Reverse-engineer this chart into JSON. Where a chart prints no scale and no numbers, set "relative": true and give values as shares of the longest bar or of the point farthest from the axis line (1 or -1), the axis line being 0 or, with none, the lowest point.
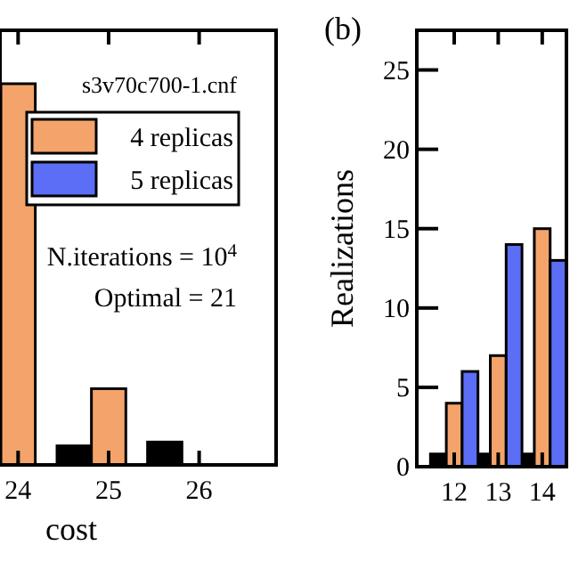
{
  "chart_data": [
    {
      "type": "bar",
      "xlabel": "cost",
      "relative": true,
      "x": [
        24,
        25,
        26
      ],
      "xlim": [
        23.8,
        26.85
      ],
      "xticks": [
        24,
        25,
        26
      ],
      "legend": "top right",
      "series": [
        {
          "color": "#000000",
          "values": [
            null,
            0.05,
            0.06
          ]
        },
        {
          "name": "4 replicas",
          "color": "#f4a46a",
          "values": [
            1,
            0.2,
            0
          ]
        },
        {
          "name": "5 replicas",
          "color": "#5b6ef5",
          "values": [
            0,
            0,
            0
          ]
        }
      ],
      "annotations": [
        "s3v70c700-1.cnf",
        "N.iterations = 10$^{4}$",
        "Optimal = 21"
      ]
    },
    {
      "type": "bar",
      "title": "(b)",
      "ylabel": "Realizations",
      "x": [
        12,
        13,
        14
      ],
      "xlim": [
        11.15,
        14.55
      ],
      "xticks": [
        12,
        13,
        14
      ],
      "ylim": [
        0,
        27.5
      ],
      "yticks": [
        0,
        5,
        10,
        15,
        20,
        25
      ],
      "series": [
        {
          "color": "#000000",
          "values": [
            0.8,
            0.8,
            0.8
          ]
        },
        {
          "color": "#f4a46a",
          "values": [
            4,
            7,
            15
          ]
        },
        {
          "color": "#5b6ef5",
          "values": [
            6,
            14,
            13
          ]
        }
      ]
    }
  ]
}
